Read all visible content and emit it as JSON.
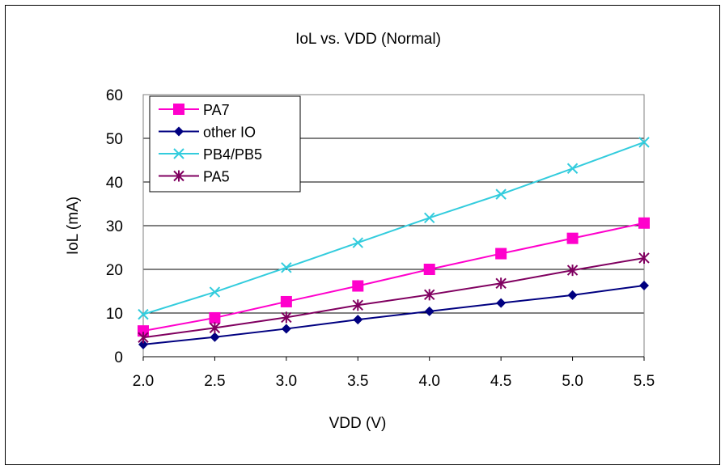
{
  "chart_data": {
    "type": "line",
    "title": "IoL vs. VDD (Normal)",
    "xlabel": "VDD (V)",
    "ylabel": "IoL (mA)",
    "x": [
      2.0,
      2.5,
      3.0,
      3.5,
      4.0,
      4.5,
      5.0,
      5.5
    ],
    "x_tick_labels": [
      "2.0",
      "2.5",
      "3.0",
      "3.5",
      "4.0",
      "4.5",
      "5.0",
      "5.5"
    ],
    "y_ticks": [
      0,
      10,
      20,
      30,
      40,
      50,
      60
    ],
    "y_tick_labels": [
      "0",
      "10",
      "20",
      "30",
      "40",
      "50",
      "60"
    ],
    "xlim": [
      2.0,
      5.5
    ],
    "ylim": [
      0,
      60
    ],
    "grid": "horizontal",
    "legend_position": "top-left",
    "series": [
      {
        "name": "PA7",
        "color": "#ff00cc",
        "marker": "square",
        "values": [
          5.9,
          8.9,
          12.6,
          16.2,
          20.0,
          23.6,
          27.1,
          30.6
        ]
      },
      {
        "name": "other IO",
        "color": "#000080",
        "marker": "diamond",
        "values": [
          2.8,
          4.5,
          6.4,
          8.5,
          10.4,
          12.3,
          14.1,
          16.3
        ]
      },
      {
        "name": "PB4/PB5",
        "color": "#33ccdd",
        "marker": "x",
        "values": [
          9.7,
          14.8,
          20.4,
          26.1,
          31.8,
          37.2,
          43.1,
          49.1
        ]
      },
      {
        "name": "PA5",
        "color": "#800060",
        "marker": "asterisk",
        "values": [
          4.4,
          6.6,
          9.0,
          11.8,
          14.2,
          16.8,
          19.8,
          22.6
        ]
      }
    ]
  }
}
